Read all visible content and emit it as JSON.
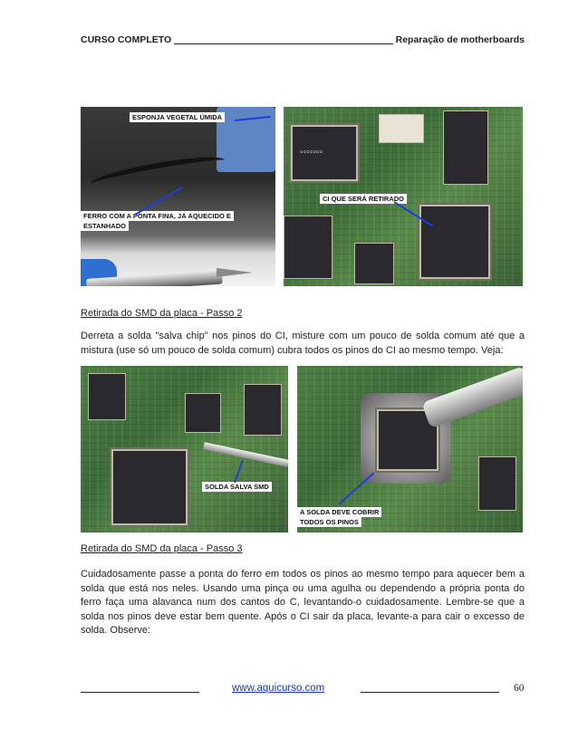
{
  "header": {
    "left": "CURSO COMPLETO",
    "right": "Reparação de motherboards"
  },
  "photos": {
    "photo1": {
      "label_top": "ESPONJA VEGETAL ÚMIDA",
      "label_bottom_line1": "FERRO COM A PONTA FINA, JÁ AQUECIDO E",
      "label_bottom_line2": "ESTANHADO"
    },
    "photo2": {
      "label": "CI QUE SERÁ RETIRADO"
    },
    "photo3": {
      "label": "SOLDA SALVA SMD"
    },
    "photo4": {
      "label_line1": "A SOLDA DEVE COBRIR",
      "label_line2": "TODOS OS PINOS"
    }
  },
  "section2": {
    "title": "Retirada do SMD da placa - Passo 2",
    "text": "Derreta a solda \"salva chip\" nos pinos do CI, misture com um pouco de solda comum até que a mistura (use só um pouco de solda comum) cubra todos os pinos do CI ao mesmo tempo. Veja:"
  },
  "section3": {
    "title": "Retirada do SMD da placa - Passo 3",
    "text": "Cuidadosamente passe a ponta do ferro em todos os pinos ao mesmo tempo para aquecer bem a solda que está nos neles. Usando uma pinça ou uma agulha ou dependendo a própria ponta do ferro faça uma alavanca num dos cantos do C, levantando-o cuidadosamente. Lembre-se que a solda nos pinos deve estar bem quente. Após o CI sair da placa, levante-a para cair o excesso de solda. Observe:"
  },
  "footer": {
    "link": "www.aquicurso.com",
    "page_number": "60"
  }
}
